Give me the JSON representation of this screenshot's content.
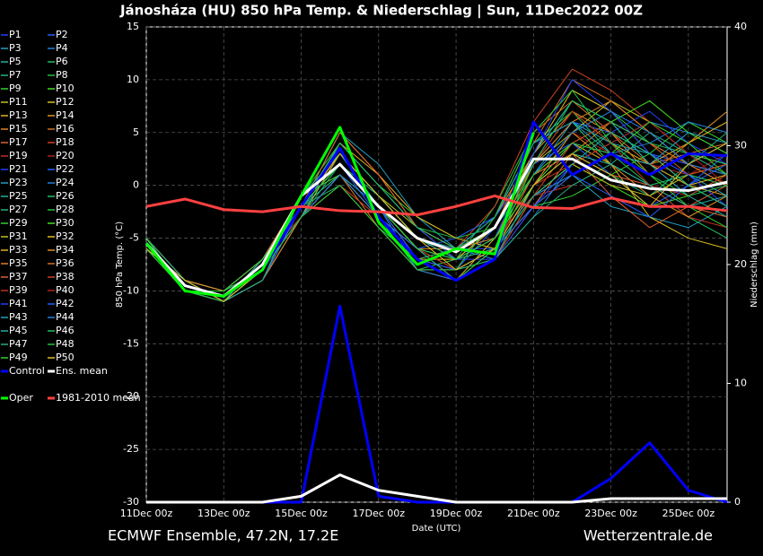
{
  "chart_data": {
    "type": "line",
    "title": "Jánosháza  (HU)  850 hPa Temp. & Niederschlag | Sun, 11Dec2022 00Z",
    "ylabel": "850 hPa Temp. (°C)",
    "y2label": "Niederschlag (mm)",
    "xlabel": "Date (UTC)",
    "footer_left": "ECMWF Ensemble, 47.2N, 17.2E",
    "footer_right": "Wetterzentrale.de",
    "x": [
      0,
      24,
      48,
      72,
      96,
      120,
      144,
      168,
      192,
      216,
      240,
      264,
      288,
      312,
      336,
      360
    ],
    "xlim": [
      0,
      360
    ],
    "xticks": [
      {
        "value": 0,
        "label": "11Dec 00z"
      },
      {
        "value": 48,
        "label": "13Dec 00z"
      },
      {
        "value": 96,
        "label": "15Dec 00z"
      },
      {
        "value": 144,
        "label": "17Dec 00z"
      },
      {
        "value": 192,
        "label": "19Dec 00z"
      },
      {
        "value": 240,
        "label": "21Dec 00z"
      },
      {
        "value": 288,
        "label": "23Dec 00z"
      },
      {
        "value": 336,
        "label": "25Dec 00z"
      }
    ],
    "ylim": [
      -30,
      15
    ],
    "yticks": [
      -30,
      -25,
      -20,
      -15,
      -10,
      -5,
      0,
      5,
      10,
      15
    ],
    "y2lim": [
      0,
      40
    ],
    "y2ticks": [
      0,
      10,
      20,
      30,
      40
    ],
    "grid": true,
    "series": [
      {
        "name": "P1",
        "color": "#2040ff",
        "values": [
          -6,
          -10,
          -11,
          -9,
          -3,
          3,
          -1,
          -5,
          -6,
          -6,
          0,
          4,
          3,
          2,
          -1,
          0
        ]
      },
      {
        "name": "P2",
        "color": "#2060ff",
        "values": [
          -5,
          -9,
          -10,
          -7,
          -1,
          2,
          -3,
          -7,
          -8,
          -4,
          2,
          6,
          5,
          3,
          2,
          4
        ]
      },
      {
        "name": "P3",
        "color": "#20a0c0",
        "values": [
          -6,
          -10,
          -11,
          -8,
          -2,
          1,
          -2,
          -6,
          -7,
          -5,
          -1,
          1,
          -2,
          -3,
          -4,
          -2
        ]
      },
      {
        "name": "P4",
        "color": "#2080e0",
        "values": [
          -5,
          -9,
          -11,
          -8,
          -3,
          4,
          0,
          -4,
          -6,
          -7,
          -3,
          2,
          4,
          6,
          5,
          3
        ]
      },
      {
        "name": "P5",
        "color": "#20b0a0",
        "values": [
          -6,
          -9,
          -10,
          -7,
          -1,
          3,
          -2,
          -7,
          -9,
          -6,
          3,
          8,
          6,
          2,
          0,
          -2
        ]
      },
      {
        "name": "P6",
        "color": "#20c060",
        "values": [
          -5,
          -10,
          -11,
          -9,
          -2,
          1,
          -3,
          -8,
          -8,
          -3,
          4,
          7,
          3,
          0,
          -3,
          -5
        ]
      },
      {
        "name": "P7",
        "color": "#20b080",
        "values": [
          -6,
          -10,
          -10,
          -8,
          -2,
          2,
          -1,
          -5,
          -6,
          -5,
          0,
          3,
          1,
          -1,
          2,
          5
        ]
      },
      {
        "name": "P8",
        "color": "#20c040",
        "values": [
          -5,
          -9,
          -11,
          -8,
          -3,
          0,
          -4,
          -8,
          -7,
          -2,
          5,
          9,
          7,
          4,
          1,
          0
        ]
      },
      {
        "name": "P9",
        "color": "#30d030",
        "values": [
          -5,
          -10,
          -11,
          -7,
          -1,
          4,
          0,
          -3,
          -5,
          -6,
          -2,
          -1,
          1,
          3,
          6,
          4
        ]
      },
      {
        "name": "P10",
        "color": "#40e020",
        "values": [
          -6,
          -9,
          -10,
          -8,
          -2,
          2,
          -2,
          -6,
          -8,
          -7,
          -1,
          2,
          0,
          -2,
          -1,
          1
        ]
      },
      {
        "name": "P11",
        "color": "#c0c020",
        "values": [
          -5,
          -9,
          -11,
          -9,
          -3,
          3,
          -1,
          -4,
          -6,
          -4,
          2,
          5,
          8,
          6,
          3,
          2
        ]
      },
      {
        "name": "P12",
        "color": "#e0c020",
        "values": [
          -6,
          -10,
          -11,
          -8,
          -1,
          1,
          -3,
          -7,
          -9,
          -5,
          1,
          4,
          2,
          -3,
          -5,
          -6
        ]
      },
      {
        "name": "P13",
        "color": "#e0b020",
        "values": [
          -5,
          -9,
          -10,
          -7,
          -2,
          5,
          1,
          -4,
          -7,
          -6,
          0,
          2,
          4,
          2,
          0,
          -1
        ]
      },
      {
        "name": "P14",
        "color": "#e09020",
        "values": [
          -6,
          -10,
          -11,
          -8,
          -2,
          2,
          -2,
          -6,
          -6,
          -3,
          3,
          7,
          5,
          1,
          4,
          7
        ]
      },
      {
        "name": "P15",
        "color": "#e08020",
        "values": [
          -5,
          -10,
          -11,
          -9,
          -3,
          1,
          -4,
          -8,
          -9,
          -7,
          -2,
          3,
          6,
          4,
          2,
          1
        ]
      },
      {
        "name": "P16",
        "color": "#d07020",
        "values": [
          -5,
          -9,
          -10,
          -8,
          -2,
          3,
          -1,
          -5,
          -7,
          -4,
          4,
          10,
          8,
          5,
          2,
          0
        ]
      },
      {
        "name": "P17",
        "color": "#e06030",
        "values": [
          -6,
          -9,
          -11,
          -7,
          -1,
          2,
          -2,
          -6,
          -8,
          -6,
          1,
          3,
          -1,
          -4,
          -2,
          0
        ]
      },
      {
        "name": "P18",
        "color": "#d04020",
        "values": [
          -5,
          -10,
          -11,
          -8,
          -3,
          0,
          -3,
          -7,
          -6,
          -2,
          6,
          11,
          9,
          6,
          3,
          1
        ]
      },
      {
        "name": "P19",
        "color": "#c03020",
        "values": [
          -6,
          -10,
          -10,
          -8,
          -2,
          4,
          0,
          -4,
          -6,
          -5,
          -1,
          0,
          2,
          0,
          -3,
          -4
        ]
      },
      {
        "name": "P20",
        "color": "#b02020",
        "values": [
          -5,
          -9,
          -11,
          -9,
          -2,
          2,
          -2,
          -7,
          -8,
          -6,
          0,
          5,
          3,
          2,
          1,
          3
        ]
      },
      {
        "name": "P21",
        "color": "#2040ff",
        "values": [
          -6,
          -10,
          -11,
          -8,
          -1,
          3,
          -1,
          -5,
          -7,
          -7,
          -2,
          2,
          5,
          7,
          4,
          2
        ]
      },
      {
        "name": "P22",
        "color": "#2060ff",
        "values": [
          -5,
          -9,
          -10,
          -7,
          -3,
          1,
          -3,
          -6,
          -5,
          -3,
          2,
          4,
          1,
          -2,
          0,
          2
        ]
      },
      {
        "name": "P23",
        "color": "#20a0c0",
        "values": [
          -5,
          -10,
          -11,
          -8,
          -2,
          5,
          2,
          -3,
          -6,
          -5,
          1,
          6,
          4,
          3,
          1,
          -1
        ]
      },
      {
        "name": "P24",
        "color": "#2080e0",
        "values": [
          -6,
          -9,
          -11,
          -9,
          -2,
          2,
          -2,
          -8,
          -9,
          -6,
          -1,
          1,
          3,
          4,
          6,
          5
        ]
      },
      {
        "name": "P25",
        "color": "#20b0a0",
        "values": [
          -5,
          -10,
          -10,
          -8,
          -1,
          3,
          -1,
          -5,
          -7,
          -4,
          3,
          8,
          6,
          2,
          -1,
          -3
        ]
      },
      {
        "name": "P26",
        "color": "#20c060",
        "values": [
          -6,
          -9,
          -11,
          -7,
          -2,
          0,
          -4,
          -7,
          -6,
          -3,
          4,
          6,
          2,
          0,
          1,
          0
        ]
      },
      {
        "name": "P27",
        "color": "#20b080",
        "values": [
          -5,
          -10,
          -11,
          -8,
          -3,
          2,
          -2,
          -6,
          -8,
          -7,
          -3,
          0,
          2,
          5,
          3,
          1
        ]
      },
      {
        "name": "P28",
        "color": "#20c040",
        "values": [
          -6,
          -10,
          -10,
          -8,
          -2,
          4,
          0,
          -4,
          -5,
          -4,
          1,
          3,
          5,
          3,
          0,
          -2
        ]
      },
      {
        "name": "P29",
        "color": "#30d030",
        "values": [
          -5,
          -9,
          -11,
          -9,
          -1,
          1,
          -3,
          -7,
          -9,
          -6,
          2,
          7,
          4,
          1,
          -2,
          -4
        ]
      },
      {
        "name": "P30",
        "color": "#40e020",
        "values": [
          -6,
          -10,
          -11,
          -8,
          -2,
          3,
          -1,
          -5,
          -6,
          -5,
          0,
          4,
          6,
          8,
          5,
          3
        ]
      },
      {
        "name": "P31",
        "color": "#c0c020",
        "values": [
          -5,
          -9,
          -10,
          -7,
          -2,
          2,
          -2,
          -6,
          -8,
          -6,
          -1,
          2,
          0,
          -1,
          1,
          2
        ]
      },
      {
        "name": "P32",
        "color": "#e0c020",
        "values": [
          -6,
          -10,
          -11,
          -8,
          -3,
          1,
          -3,
          -7,
          -7,
          -4,
          3,
          9,
          7,
          3,
          0,
          1
        ]
      },
      {
        "name": "P33",
        "color": "#e0b020",
        "values": [
          -5,
          -10,
          -11,
          -9,
          -2,
          4,
          1,
          -3,
          -5,
          -6,
          -2,
          1,
          3,
          2,
          4,
          6
        ]
      },
      {
        "name": "P34",
        "color": "#e09020",
        "values": [
          -6,
          -9,
          -10,
          -8,
          -1,
          2,
          -2,
          -6,
          -9,
          -7,
          0,
          5,
          2,
          -1,
          -3,
          -1
        ]
      },
      {
        "name": "P35",
        "color": "#e08020",
        "values": [
          -5,
          -10,
          -11,
          -8,
          -2,
          3,
          -1,
          -5,
          -7,
          -5,
          2,
          6,
          8,
          5,
          2,
          0
        ]
      },
      {
        "name": "P36",
        "color": "#d07020",
        "values": [
          -6,
          -9,
          -11,
          -7,
          -3,
          0,
          -4,
          -8,
          -8,
          -3,
          5,
          8,
          5,
          2,
          3,
          4
        ]
      },
      {
        "name": "P37",
        "color": "#e06030",
        "values": [
          -5,
          -10,
          -10,
          -8,
          -2,
          5,
          1,
          -4,
          -6,
          -5,
          1,
          3,
          1,
          0,
          -2,
          -3
        ]
      },
      {
        "name": "P38",
        "color": "#d04020",
        "values": [
          -6,
          -10,
          -11,
          -9,
          -1,
          2,
          -2,
          -7,
          -9,
          -7,
          -1,
          4,
          6,
          4,
          1,
          2
        ]
      },
      {
        "name": "P39",
        "color": "#c03020",
        "values": [
          -5,
          -9,
          -11,
          -8,
          -2,
          3,
          -1,
          -5,
          -6,
          -4,
          2,
          7,
          4,
          0,
          -1,
          1
        ]
      },
      {
        "name": "P40",
        "color": "#b02020",
        "values": [
          -6,
          -10,
          -10,
          -7,
          -3,
          1,
          -3,
          -6,
          -8,
          -6,
          0,
          2,
          4,
          6,
          3,
          0
        ]
      },
      {
        "name": "P41",
        "color": "#2040ff",
        "values": [
          -5,
          -10,
          -11,
          -8,
          -2,
          4,
          0,
          -4,
          -7,
          -5,
          3,
          10,
          7,
          3,
          1,
          -2
        ]
      },
      {
        "name": "P42",
        "color": "#2060ff",
        "values": [
          -6,
          -9,
          -11,
          -9,
          -2,
          2,
          -2,
          -7,
          -8,
          -6,
          -2,
          1,
          -1,
          -3,
          0,
          3
        ]
      },
      {
        "name": "P43",
        "color": "#20a0c0",
        "values": [
          -5,
          -10,
          -10,
          -8,
          -1,
          3,
          -1,
          -5,
          -6,
          -3,
          4,
          6,
          3,
          2,
          5,
          4
        ]
      },
      {
        "name": "P44",
        "color": "#2080e0",
        "values": [
          -6,
          -9,
          -11,
          -8,
          -3,
          1,
          -3,
          -6,
          -7,
          -5,
          1,
          5,
          7,
          5,
          2,
          1
        ]
      },
      {
        "name": "P45",
        "color": "#20b0a0",
        "values": [
          -5,
          -10,
          -11,
          -7,
          -2,
          2,
          -2,
          -6,
          -9,
          -7,
          0,
          3,
          2,
          0,
          -2,
          -1
        ]
      },
      {
        "name": "P46",
        "color": "#20c060",
        "values": [
          -6,
          -10,
          -10,
          -8,
          -2,
          4,
          0,
          -4,
          -6,
          -4,
          2,
          8,
          6,
          4,
          3,
          2
        ]
      },
      {
        "name": "P47",
        "color": "#20b080",
        "values": [
          -5,
          -9,
          -11,
          -9,
          -1,
          3,
          -1,
          -5,
          -7,
          -6,
          -1,
          2,
          5,
          3,
          0,
          -2
        ]
      },
      {
        "name": "P48",
        "color": "#20c040",
        "values": [
          -6,
          -10,
          -11,
          -8,
          -3,
          0,
          -4,
          -8,
          -8,
          -3,
          5,
          9,
          4,
          1,
          -1,
          0
        ]
      },
      {
        "name": "P49",
        "color": "#30d030",
        "values": [
          -5,
          -10,
          -10,
          -7,
          -2,
          2,
          -2,
          -6,
          -7,
          -5,
          1,
          4,
          3,
          6,
          4,
          1
        ]
      },
      {
        "name": "P50",
        "color": "#e0c020",
        "values": [
          -6,
          -9,
          -11,
          -8,
          -2,
          3,
          -1,
          -5,
          -8,
          -6,
          0,
          3,
          1,
          -2,
          2,
          4
        ]
      },
      {
        "name": "Control",
        "color": "#0000ff",
        "width": 3,
        "values": [
          -5.5,
          -9.5,
          -10.5,
          -8,
          -2,
          3.5,
          -3,
          -7,
          -9,
          -7,
          6,
          1,
          3,
          1,
          3,
          2.8
        ],
        "precip": [
          0,
          0,
          0,
          0,
          0,
          16.5,
          0.5,
          0,
          0,
          0,
          0,
          0,
          2,
          5,
          1,
          0
        ]
      },
      {
        "name": "Ens. mean",
        "color": "#ffffff",
        "width": 3,
        "values": [
          -5.5,
          -9.5,
          -10.5,
          -7.5,
          -1,
          2,
          -2,
          -5,
          -6.3,
          -4,
          2.5,
          2.5,
          0.5,
          -0.3,
          -0.5,
          0.3
        ],
        "precip": [
          0,
          0,
          0,
          0,
          0.5,
          2.3,
          1,
          0.5,
          0,
          0,
          0,
          0,
          0.3,
          0.3,
          0.3,
          0.3
        ]
      },
      {
        "name": "Oper",
        "color": "#00ff00",
        "width": 3,
        "values": [
          -5.5,
          -10,
          -10.5,
          -8,
          -1,
          5.5,
          -3.5,
          -7.5,
          -6,
          -6.5,
          5,
          null,
          null,
          null,
          null,
          null
        ]
      },
      {
        "name": "1981-2010 mean",
        "color": "#ff4040",
        "width": 3,
        "values": [
          -2,
          -1.3,
          -2.3,
          -2.5,
          -2,
          -2.4,
          -2.5,
          -2.8,
          -2,
          -1,
          -2.1,
          -2.2,
          -1.2,
          -2,
          -2,
          -2.4
        ]
      }
    ]
  }
}
